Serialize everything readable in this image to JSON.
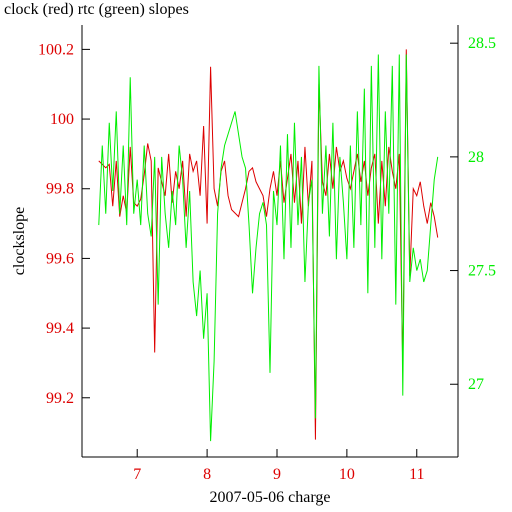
{
  "chart_data": {
    "type": "line",
    "title": "clock (red) rtc (green) slopes",
    "x_label": "2007-05-06 charge",
    "y_label": "clockslope",
    "x": [
      6.45,
      6.5,
      6.55,
      6.6,
      6.65,
      6.7,
      6.75,
      6.8,
      6.85,
      6.9,
      6.95,
      7.0,
      7.05,
      7.1,
      7.15,
      7.2,
      7.25,
      7.3,
      7.35,
      7.4,
      7.45,
      7.5,
      7.55,
      7.6,
      7.65,
      7.7,
      7.75,
      7.8,
      7.85,
      7.9,
      7.95,
      8.0,
      8.05,
      8.1,
      8.15,
      8.2,
      8.25,
      8.3,
      8.35,
      8.4,
      8.45,
      8.5,
      8.55,
      8.6,
      8.65,
      8.7,
      8.75,
      8.8,
      8.85,
      8.9,
      8.95,
      9.0,
      9.05,
      9.1,
      9.15,
      9.2,
      9.25,
      9.3,
      9.35,
      9.4,
      9.45,
      9.5,
      9.55,
      9.6,
      9.65,
      9.7,
      9.75,
      9.8,
      9.85,
      9.9,
      9.95,
      10.0,
      10.05,
      10.1,
      10.15,
      10.2,
      10.25,
      10.3,
      10.35,
      10.4,
      10.45,
      10.5,
      10.55,
      10.6,
      10.65,
      10.7,
      10.75,
      10.8,
      10.85,
      10.9,
      10.95,
      11.0,
      11.05,
      11.1,
      11.15,
      11.2,
      11.25,
      11.3
    ],
    "series": [
      {
        "color": "#dd0000",
        "axis": "y",
        "values": [
          99.88,
          99.87,
          99.86,
          99.87,
          99.75,
          99.88,
          99.72,
          99.78,
          99.73,
          99.92,
          99.76,
          99.75,
          99.77,
          99.84,
          99.93,
          99.88,
          99.33,
          99.86,
          99.82,
          99.78,
          99.9,
          99.76,
          99.85,
          99.8,
          99.88,
          99.72,
          99.9,
          99.85,
          99.88,
          99.78,
          99.98,
          99.7,
          100.15,
          99.8,
          99.75,
          99.85,
          99.88,
          99.78,
          99.74,
          99.73,
          99.72,
          99.76,
          99.8,
          99.85,
          99.86,
          99.82,
          99.8,
          99.78,
          99.72,
          99.8,
          99.85,
          99.78,
          99.88,
          99.76,
          99.83,
          99.9,
          99.76,
          99.88,
          99.7,
          99.92,
          99.75,
          99.88,
          99.08,
          100.1,
          99.82,
          99.78,
          99.9,
          99.8,
          99.92,
          99.85,
          99.88,
          99.83,
          99.8,
          99.85,
          99.9,
          99.82,
          99.88,
          99.78,
          99.86,
          99.9,
          99.7,
          99.88,
          99.75,
          99.92,
          99.85,
          99.8,
          99.9,
          99.28,
          100.2,
          99.55,
          99.8,
          99.78,
          99.82,
          99.75,
          99.7,
          99.76,
          99.72,
          99.66
        ]
      },
      {
        "color": "#00ee00",
        "axis": "y2",
        "values": [
          27.7,
          28.05,
          27.75,
          28.15,
          27.85,
          28.2,
          27.75,
          28.05,
          27.7,
          28.35,
          27.75,
          27.9,
          27.7,
          28.05,
          27.75,
          27.65,
          28.0,
          27.35,
          28.0,
          27.75,
          27.6,
          27.85,
          27.7,
          28.05,
          27.9,
          27.6,
          27.85,
          27.45,
          27.3,
          27.5,
          27.2,
          27.4,
          26.75,
          27.1,
          27.75,
          27.95,
          28.05,
          28.1,
          28.15,
          28.2,
          28.1,
          28.0,
          27.95,
          27.7,
          27.4,
          27.6,
          27.75,
          27.8,
          27.7,
          27.05,
          27.85,
          27.7,
          28.05,
          27.55,
          28.1,
          27.6,
          28.15,
          27.7,
          28.0,
          27.45,
          27.8,
          27.9,
          26.85,
          28.4,
          27.75,
          28.05,
          27.65,
          28.15,
          27.55,
          28.0,
          27.8,
          27.55,
          28.05,
          27.6,
          28.2,
          27.7,
          28.3,
          27.4,
          28.4,
          27.6,
          28.45,
          27.55,
          28.2,
          27.75,
          28.4,
          27.35,
          28.45,
          26.95,
          28.45,
          27.45,
          27.6,
          27.5,
          27.55,
          27.45,
          27.5,
          27.7,
          27.9,
          28.0
        ]
      }
    ],
    "xlim": [
      6.21,
      11.59
    ],
    "xticks": [
      7,
      8,
      9,
      10,
      11
    ],
    "x_tick_color": "#dd0000",
    "ylim": [
      99.03,
      100.27
    ],
    "yticks": [
      99.2,
      99.4,
      99.6,
      99.8,
      100,
      100.2
    ],
    "y_tick_color": "#dd0000",
    "y2lim": [
      26.68,
      28.58
    ],
    "y2ticks": [
      27,
      27.5,
      28,
      28.5
    ],
    "y2_tick_color": "#00ee00"
  }
}
